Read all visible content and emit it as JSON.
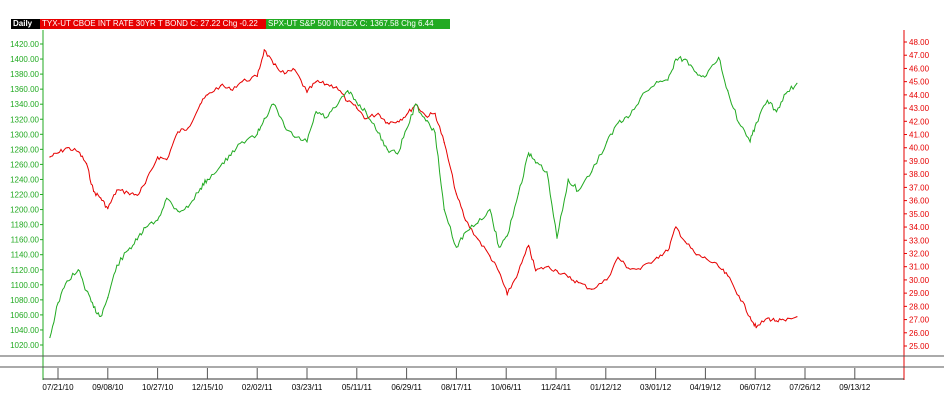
{
  "header": {
    "period": "Daily",
    "tyx_legend": "TYX-UT  CBOE INT RATE 30YR T BOND  C: 27.22  Chg -0.22",
    "spx_legend": "SPX-UT  S&P 500 INDEX  C: 1367.58  Chg 6.44"
  },
  "colors": {
    "tyx": "#e60000",
    "spx": "#22aa22",
    "left_axis": "#22aa22",
    "right_axis": "#e60000"
  },
  "chart_data": {
    "type": "line",
    "title": "",
    "x_tick_labels": [
      "07/21/10",
      "09/08/10",
      "10/27/10",
      "12/15/10",
      "02/02/11",
      "03/23/11",
      "05/11/11",
      "06/29/11",
      "08/17/11",
      "10/06/11",
      "11/24/11",
      "01/12/12",
      "03/01/12",
      "04/19/12",
      "06/07/12",
      "07/26/12",
      "09/13/12"
    ],
    "left_axis": {
      "series": "SPX-UT",
      "range": [
        1020,
        1420
      ],
      "ticks": [
        "1420.00",
        "1400.00",
        "1380.00",
        "1360.00",
        "1340.00",
        "1320.00",
        "1300.00",
        "1280.00",
        "1260.00",
        "1240.00",
        "1220.00",
        "1200.00",
        "1180.00",
        "1160.00",
        "1140.00",
        "1120.00",
        "1100.00",
        "1080.00",
        "1060.00",
        "1040.00",
        "1020.00"
      ]
    },
    "right_axis": {
      "series": "TYX-UT",
      "range": [
        25,
        48
      ],
      "ticks": [
        "48.00",
        "47.00",
        "46.00",
        "45.00",
        "44.00",
        "43.00",
        "42.00",
        "41.00",
        "40.00",
        "39.00",
        "38.00",
        "37.00",
        "36.00",
        "35.00",
        "34.00",
        "33.00",
        "32.00",
        "31.00",
        "30.00",
        "29.00",
        "28.00",
        "27.00",
        "26.00",
        "25.00"
      ]
    },
    "series": [
      {
        "name": "TYX-UT",
        "axis": "right",
        "points": [
          [
            "07/13/10",
            39.3
          ],
          [
            "07/21/10",
            39.6
          ],
          [
            "07/30/10",
            40.0
          ],
          [
            "08/10/10",
            39.7
          ],
          [
            "08/18/10",
            38.8
          ],
          [
            "08/25/10",
            36.7
          ],
          [
            "09/01/10",
            36.2
          ],
          [
            "09/08/10",
            35.4
          ],
          [
            "09/17/10",
            36.8
          ],
          [
            "09/28/10",
            36.6
          ],
          [
            "10/07/10",
            36.4
          ],
          [
            "10/15/10",
            37.3
          ],
          [
            "10/27/10",
            39.3
          ],
          [
            "11/05/10",
            39.1
          ],
          [
            "11/16/10",
            41.2
          ],
          [
            "11/26/10",
            41.5
          ],
          [
            "12/08/10",
            43.3
          ],
          [
            "12/15/10",
            44.0
          ],
          [
            "12/28/10",
            44.7
          ],
          [
            "01/07/11",
            44.4
          ],
          [
            "01/18/11",
            45.0
          ],
          [
            "02/02/11",
            45.4
          ],
          [
            "02/09/11",
            47.4
          ],
          [
            "02/18/11",
            46.3
          ],
          [
            "03/01/11",
            45.6
          ],
          [
            "03/11/11",
            45.9
          ],
          [
            "03/23/11",
            44.2
          ],
          [
            "04/01/11",
            45.0
          ],
          [
            "04/11/11",
            44.8
          ],
          [
            "04/21/11",
            44.6
          ],
          [
            "05/02/11",
            43.5
          ],
          [
            "05/11/11",
            43.0
          ],
          [
            "05/20/11",
            42.2
          ],
          [
            "06/01/11",
            42.6
          ],
          [
            "06/10/11",
            41.9
          ],
          [
            "06/20/11",
            42.0
          ],
          [
            "06/29/11",
            42.5
          ],
          [
            "07/08/11",
            43.3
          ],
          [
            "07/18/11",
            42.4
          ],
          [
            "07/27/11",
            42.6
          ],
          [
            "08/05/11",
            40.4
          ],
          [
            "08/17/11",
            36.5
          ],
          [
            "08/26/11",
            34.5
          ],
          [
            "09/07/11",
            33.1
          ],
          [
            "09/19/11",
            31.8
          ],
          [
            "09/28/11",
            30.6
          ],
          [
            "10/06/11",
            28.9
          ],
          [
            "10/17/11",
            30.6
          ],
          [
            "10/27/11",
            32.6
          ],
          [
            "11/03/11",
            30.7
          ],
          [
            "11/14/11",
            31.0
          ],
          [
            "11/24/11",
            30.7
          ],
          [
            "12/05/11",
            30.2
          ],
          [
            "12/15/11",
            29.8
          ],
          [
            "12/28/11",
            29.3
          ],
          [
            "01/12/12",
            30.0
          ],
          [
            "01/23/12",
            31.7
          ],
          [
            "02/02/12",
            30.9
          ],
          [
            "02/14/12",
            30.8
          ],
          [
            "03/01/12",
            31.7
          ],
          [
            "03/12/12",
            32.2
          ],
          [
            "03/20/12",
            34.0
          ],
          [
            "03/29/12",
            32.9
          ],
          [
            "04/09/12",
            31.9
          ],
          [
            "04/19/12",
            31.6
          ],
          [
            "05/01/12",
            31.0
          ],
          [
            "05/10/12",
            30.3
          ],
          [
            "05/21/12",
            28.8
          ],
          [
            "06/01/12",
            27.2
          ],
          [
            "06/07/12",
            26.4
          ],
          [
            "06/18/12",
            27.1
          ],
          [
            "06/27/12",
            26.9
          ],
          [
            "07/06/12",
            26.9
          ],
          [
            "07/17/12",
            27.22
          ]
        ]
      },
      {
        "name": "SPX-UT",
        "axis": "left",
        "points": [
          [
            "07/13/10",
            1030
          ],
          [
            "07/21/10",
            1076
          ],
          [
            "07/30/10",
            1105
          ],
          [
            "08/10/10",
            1120
          ],
          [
            "08/18/10",
            1092
          ],
          [
            "08/25/10",
            1070
          ],
          [
            "09/01/10",
            1058
          ],
          [
            "09/08/10",
            1083
          ],
          [
            "09/17/10",
            1126
          ],
          [
            "09/28/10",
            1146
          ],
          [
            "10/07/10",
            1160
          ],
          [
            "10/15/10",
            1176
          ],
          [
            "10/27/10",
            1186
          ],
          [
            "11/05/10",
            1215
          ],
          [
            "11/16/10",
            1198
          ],
          [
            "11/26/10",
            1203
          ],
          [
            "12/08/10",
            1228
          ],
          [
            "12/15/10",
            1240
          ],
          [
            "12/28/10",
            1258
          ],
          [
            "01/07/11",
            1272
          ],
          [
            "01/18/11",
            1290
          ],
          [
            "02/02/11",
            1300
          ],
          [
            "02/09/11",
            1321
          ],
          [
            "02/18/11",
            1340
          ],
          [
            "03/01/11",
            1310
          ],
          [
            "03/11/11",
            1296
          ],
          [
            "03/23/11",
            1290
          ],
          [
            "04/01/11",
            1330
          ],
          [
            "04/11/11",
            1322
          ],
          [
            "04/21/11",
            1337
          ],
          [
            "05/02/11",
            1358
          ],
          [
            "05/11/11",
            1342
          ],
          [
            "05/20/11",
            1330
          ],
          [
            "06/01/11",
            1302
          ],
          [
            "06/10/11",
            1280
          ],
          [
            "06/20/11",
            1274
          ],
          [
            "06/29/11",
            1307
          ],
          [
            "07/08/11",
            1340
          ],
          [
            "07/18/11",
            1318
          ],
          [
            "07/27/11",
            1302
          ],
          [
            "08/05/11",
            1200
          ],
          [
            "08/17/11",
            1150
          ],
          [
            "08/26/11",
            1170
          ],
          [
            "09/07/11",
            1182
          ],
          [
            "09/19/11",
            1200
          ],
          [
            "09/28/11",
            1150
          ],
          [
            "10/06/11",
            1165
          ],
          [
            "10/17/11",
            1221
          ],
          [
            "10/27/11",
            1275
          ],
          [
            "11/03/11",
            1262
          ],
          [
            "11/14/11",
            1250
          ],
          [
            "11/24/11",
            1162
          ],
          [
            "12/05/11",
            1240
          ],
          [
            "12/15/11",
            1225
          ],
          [
            "12/28/11",
            1250
          ],
          [
            "01/12/12",
            1290
          ],
          [
            "01/23/12",
            1315
          ],
          [
            "02/02/12",
            1322
          ],
          [
            "02/14/12",
            1348
          ],
          [
            "03/01/12",
            1370
          ],
          [
            "03/12/12",
            1372
          ],
          [
            "03/20/12",
            1400
          ],
          [
            "03/29/12",
            1400
          ],
          [
            "04/09/12",
            1382
          ],
          [
            "04/19/12",
            1378
          ],
          [
            "05/01/12",
            1402
          ],
          [
            "05/10/12",
            1358
          ],
          [
            "05/21/12",
            1315
          ],
          [
            "06/01/12",
            1290
          ],
          [
            "06/07/12",
            1315
          ],
          [
            "06/18/12",
            1345
          ],
          [
            "06/27/12",
            1330
          ],
          [
            "07/06/12",
            1354
          ],
          [
            "07/17/12",
            1367.58
          ]
        ]
      }
    ]
  }
}
